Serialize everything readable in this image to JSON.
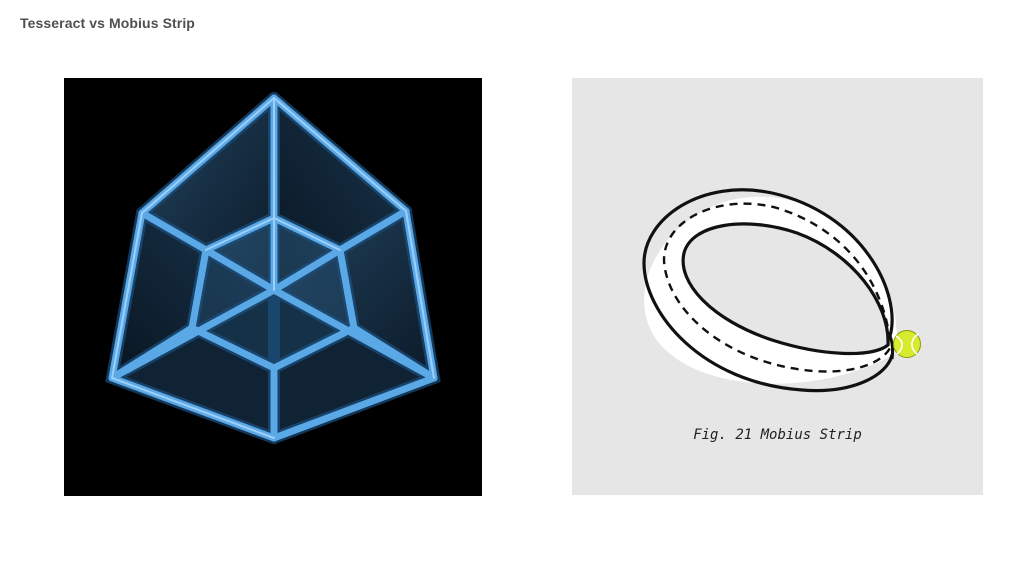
{
  "page": {
    "title": "Tesseract vs Mobius Strip"
  },
  "tesseract": {
    "icon": "tesseract-image",
    "background_color": "#000000",
    "edge_color": "#5aa8e6",
    "edge_highlight_color": "#a9d6ff",
    "face_color": "#2a5a86"
  },
  "mobius": {
    "icon": "mobius-strip-illustration",
    "background_color": "#e6e6e6",
    "strip_color": "#ffffff",
    "outline_color": "#111111",
    "ball_icon": "tennis-ball-icon",
    "ball_color": "#d8ea2e",
    "caption": "Fig. 21 Mobius Strip"
  }
}
